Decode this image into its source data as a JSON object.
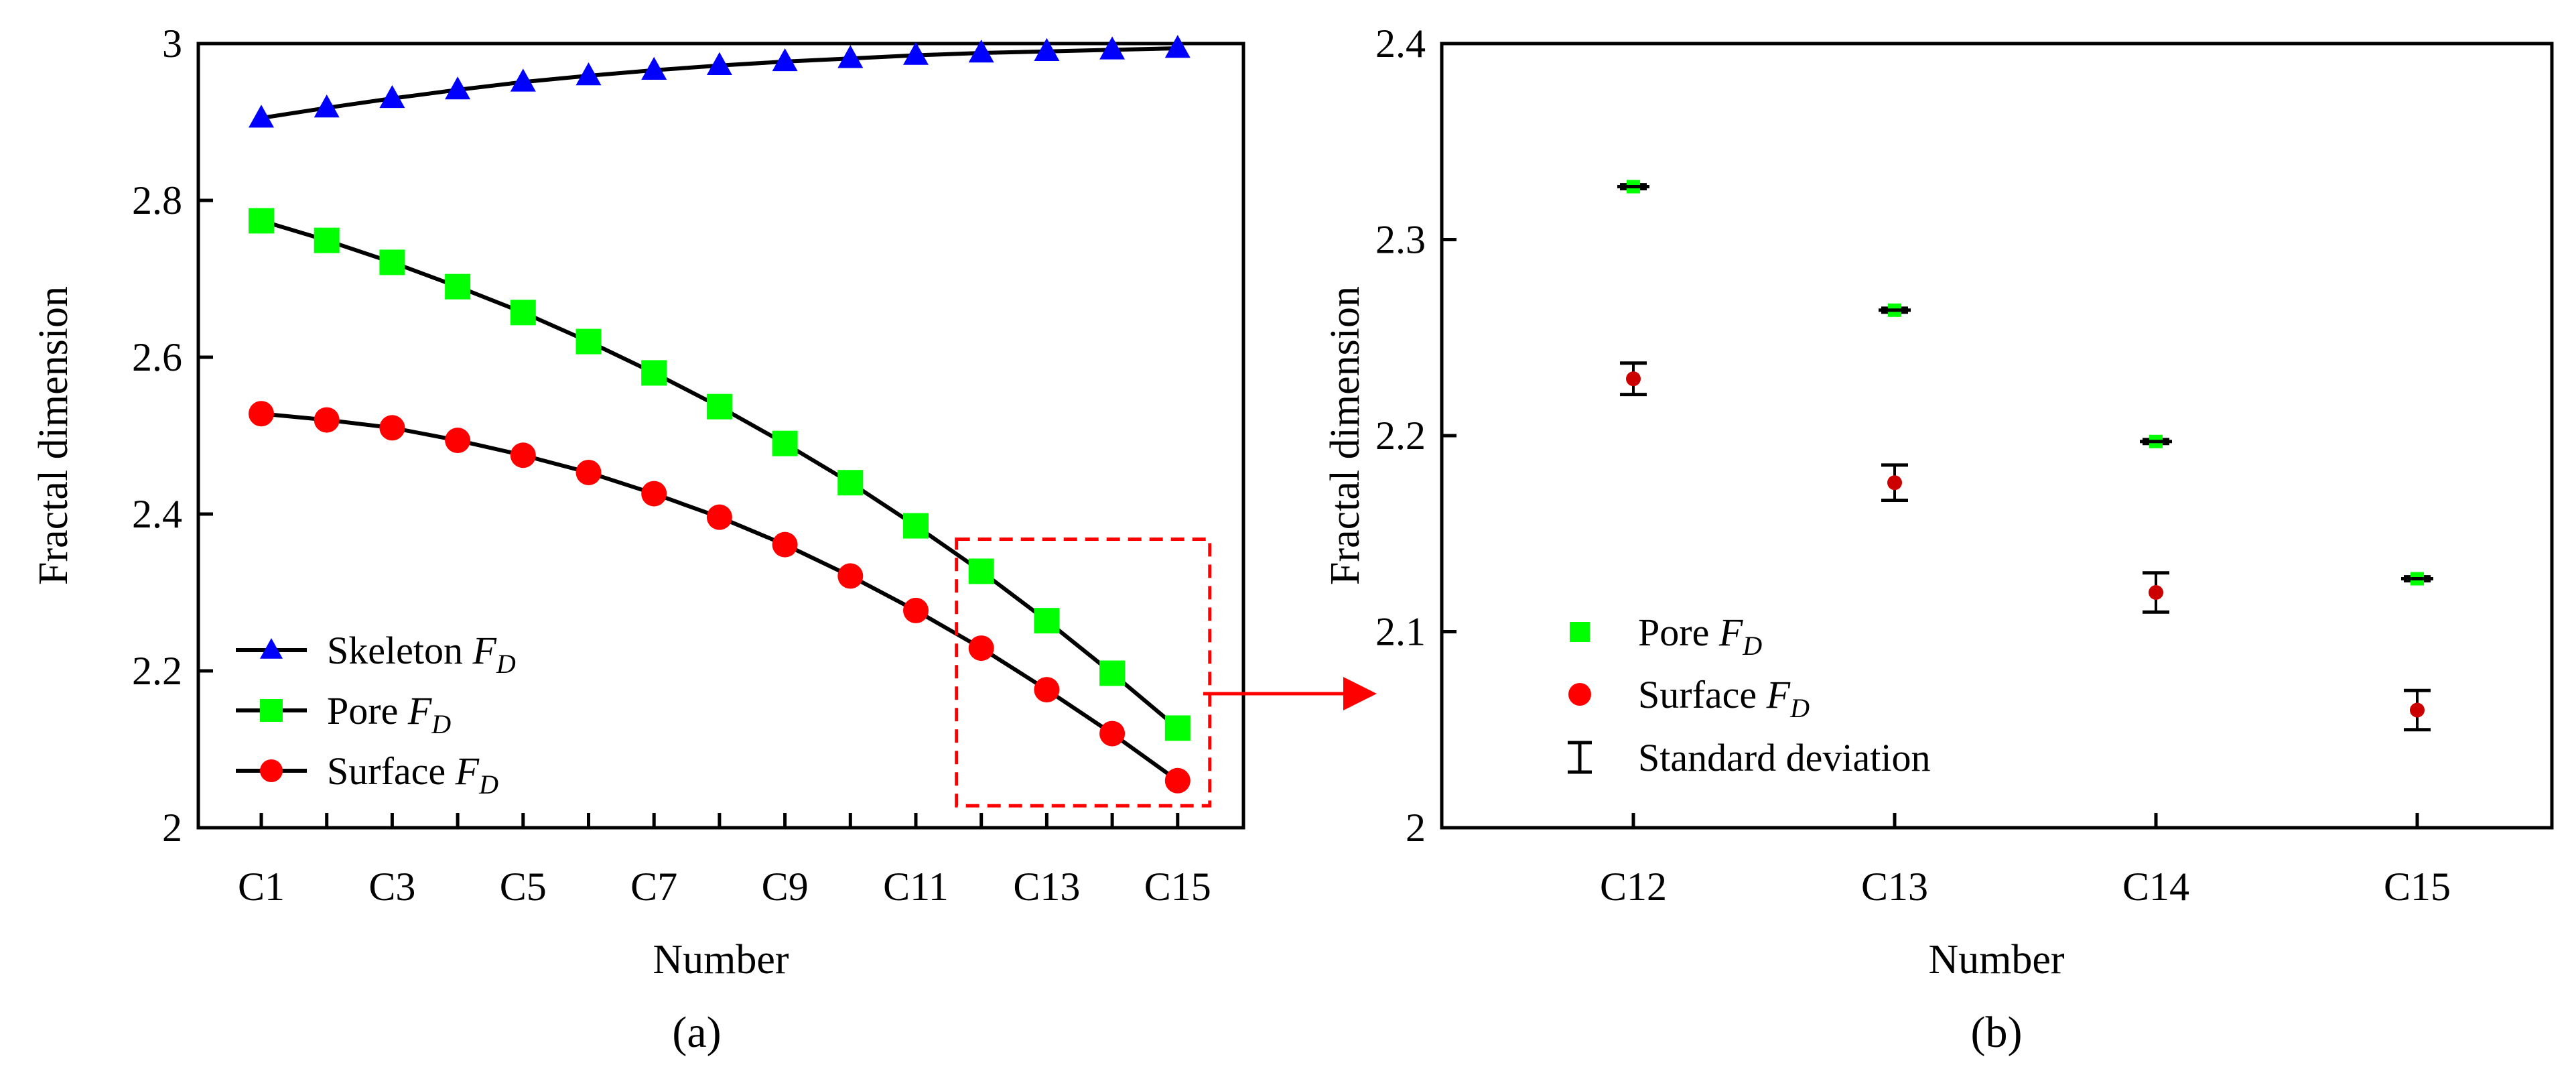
{
  "figure": {
    "caption_a": "(a)",
    "caption_b": "(b)"
  },
  "chart_data": [
    {
      "type": "line",
      "panel": "(a)",
      "xlabel": "Number",
      "ylabel": "Fractal dimension",
      "ylim": [
        2,
        3
      ],
      "yticks": [
        "2",
        "2.2",
        "2.4",
        "2.6",
        "2.8",
        "3"
      ],
      "yticks_values": [
        2,
        2.2,
        2.4,
        2.6,
        2.8,
        3
      ],
      "x": [
        "C1",
        "C2",
        "C3",
        "C4",
        "C5",
        "C6",
        "C7",
        "C8",
        "C9",
        "C10",
        "C11",
        "C12",
        "C13",
        "C14",
        "C15"
      ],
      "xtick_labels": [
        "C1",
        "",
        "C3",
        "",
        "C5",
        "",
        "C7",
        "",
        "C9",
        "",
        "C11",
        "",
        "C13",
        "",
        "C15"
      ],
      "series": [
        {
          "name": "Skeleton",
          "sub": "F",
          "subscript": "D",
          "color": "#0000ff",
          "marker": "triangle",
          "values": [
            2.905,
            2.918,
            2.93,
            2.941,
            2.951,
            2.959,
            2.966,
            2.972,
            2.977,
            2.981,
            2.985,
            2.988,
            2.99,
            2.992,
            2.994
          ]
        },
        {
          "name": "Pore",
          "sub": "F",
          "subscript": "D",
          "color": "#00ff00",
          "marker": "square",
          "values": [
            2.774,
            2.749,
            2.721,
            2.69,
            2.657,
            2.62,
            2.58,
            2.537,
            2.49,
            2.44,
            2.385,
            2.327,
            2.264,
            2.197,
            2.127
          ]
        },
        {
          "name": "Surface",
          "sub": "F",
          "subscript": "D",
          "color": "#ff0000",
          "marker": "circle",
          "values": [
            2.528,
            2.52,
            2.51,
            2.494,
            2.475,
            2.453,
            2.426,
            2.396,
            2.361,
            2.321,
            2.277,
            2.229,
            2.176,
            2.12,
            2.06
          ]
        }
      ],
      "legend": "bottom-left",
      "annotation": "dashed red box around C12–C15 with arrow pointing to panel (b)"
    },
    {
      "type": "scatter",
      "panel": "(b)",
      "xlabel": "Number",
      "ylabel": "Fractal dimension",
      "ylim": [
        2,
        2.4
      ],
      "yticks": [
        "2",
        "2.1",
        "2.2",
        "2.3",
        "2.4"
      ],
      "yticks_values": [
        2,
        2.1,
        2.2,
        2.3,
        2.4
      ],
      "categories": [
        "C12",
        "C13",
        "C14",
        "C15"
      ],
      "series": [
        {
          "name": "Pore",
          "sub": "F",
          "subscript": "D",
          "color": "#00ff00",
          "marker": "square",
          "values": [
            2.327,
            2.264,
            2.197,
            2.127
          ],
          "std": [
            0.001,
            0.001,
            0.001,
            0.001
          ]
        },
        {
          "name": "Surface",
          "sub": "F",
          "subscript": "D",
          "color": "#ff0000",
          "marker": "circle",
          "values": [
            2.229,
            2.176,
            2.12,
            2.06
          ],
          "std": [
            0.008,
            0.009,
            0.01,
            0.01
          ]
        }
      ],
      "errorbar_legend": "Standard deviation",
      "legend": "bottom-left"
    }
  ]
}
